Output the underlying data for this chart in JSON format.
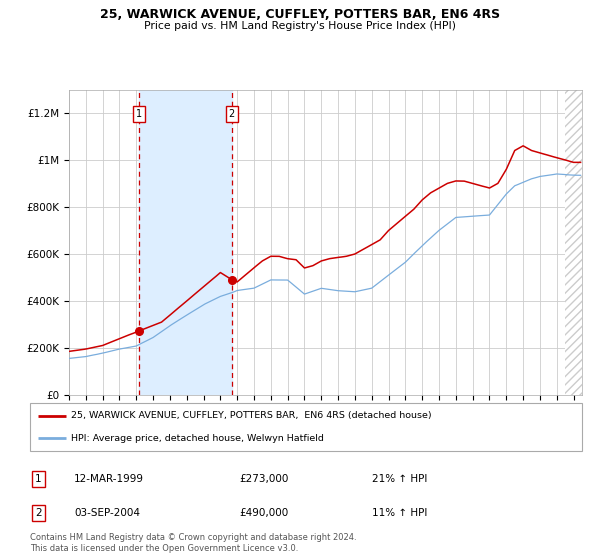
{
  "title": "25, WARWICK AVENUE, CUFFLEY, POTTERS BAR, EN6 4RS",
  "subtitle": "Price paid vs. HM Land Registry's House Price Index (HPI)",
  "legend_line1": "25, WARWICK AVENUE, CUFFLEY, POTTERS BAR,  EN6 4RS (detached house)",
  "legend_line2": "HPI: Average price, detached house, Welwyn Hatfield",
  "annotation1_label": "1",
  "annotation1_date": "12-MAR-1999",
  "annotation1_price": "£273,000",
  "annotation1_hpi": "21% ↑ HPI",
  "annotation2_label": "2",
  "annotation2_date": "03-SEP-2004",
  "annotation2_price": "£490,000",
  "annotation2_hpi": "11% ↑ HPI",
  "sale1_x": 1999.19,
  "sale1_y": 273000,
  "sale2_x": 2004.67,
  "sale2_y": 490000,
  "red_line_color": "#cc0000",
  "blue_line_color": "#7aaddd",
  "shaded_region_color": "#ddeeff",
  "dashed_line_color": "#cc0000",
  "grid_color": "#cccccc",
  "background_color": "#ffffff",
  "hatch_color": "#cccccc",
  "footer": "Contains HM Land Registry data © Crown copyright and database right 2024.\nThis data is licensed under the Open Government Licence v3.0.",
  "ylim": [
    0,
    1300000
  ],
  "xlim_start": 1995.0,
  "xlim_end": 2025.5,
  "yticks": [
    0,
    200000,
    400000,
    600000,
    800000,
    1000000,
    1200000
  ],
  "ytick_labels": [
    "£0",
    "£200K",
    "£400K",
    "£600K",
    "£800K",
    "£1M",
    "£1.2M"
  ],
  "red_pts_x": [
    1995.0,
    1996.0,
    1997.0,
    1998.0,
    1999.19,
    2000.5,
    2001.5,
    2002.5,
    2003.5,
    2004.0,
    2004.67,
    2005.0,
    2005.5,
    2006.0,
    2006.5,
    2007.0,
    2007.5,
    2008.0,
    2008.5,
    2009.0,
    2009.5,
    2010.0,
    2010.5,
    2011.0,
    2011.5,
    2012.0,
    2012.5,
    2013.0,
    2013.5,
    2014.0,
    2014.5,
    2015.0,
    2015.5,
    2016.0,
    2016.5,
    2017.0,
    2017.5,
    2018.0,
    2018.5,
    2019.0,
    2019.5,
    2020.0,
    2020.5,
    2021.0,
    2021.5,
    2022.0,
    2022.5,
    2023.0,
    2023.5,
    2024.0,
    2024.5,
    2025.0
  ],
  "red_pts_y": [
    185000,
    195000,
    210000,
    240000,
    273000,
    310000,
    370000,
    430000,
    490000,
    520000,
    490000,
    480000,
    510000,
    540000,
    570000,
    590000,
    590000,
    580000,
    575000,
    540000,
    550000,
    570000,
    580000,
    585000,
    590000,
    600000,
    620000,
    640000,
    660000,
    700000,
    730000,
    760000,
    790000,
    830000,
    860000,
    880000,
    900000,
    910000,
    910000,
    900000,
    890000,
    880000,
    900000,
    960000,
    1040000,
    1060000,
    1040000,
    1030000,
    1020000,
    1010000,
    1000000,
    990000
  ],
  "hpi_pts_x": [
    1995.0,
    1996.0,
    1997.0,
    1998.0,
    1999.0,
    2000.0,
    2001.0,
    2002.0,
    2003.0,
    2004.0,
    2004.67,
    2005.0,
    2006.0,
    2007.0,
    2008.0,
    2009.0,
    2010.0,
    2011.0,
    2012.0,
    2013.0,
    2014.0,
    2015.0,
    2016.0,
    2017.0,
    2018.0,
    2019.0,
    2020.0,
    2021.0,
    2021.5,
    2022.0,
    2022.5,
    2023.0,
    2024.0,
    2025.0
  ],
  "hpi_pts_y": [
    155000,
    163000,
    178000,
    195000,
    208000,
    245000,
    295000,
    340000,
    385000,
    420000,
    435000,
    445000,
    455000,
    490000,
    490000,
    430000,
    455000,
    445000,
    440000,
    455000,
    510000,
    565000,
    635000,
    700000,
    755000,
    760000,
    765000,
    855000,
    890000,
    905000,
    920000,
    930000,
    940000,
    935000
  ]
}
